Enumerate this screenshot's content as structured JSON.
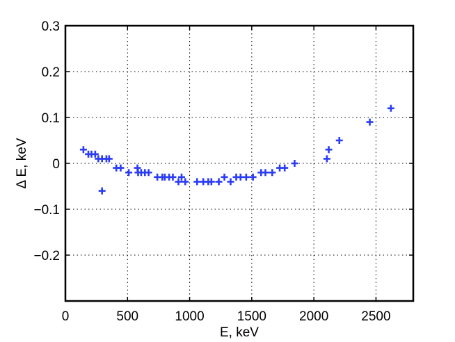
{
  "chart_data": {
    "type": "scatter",
    "xlabel": "E, keV",
    "ylabel": "Δ E, keV",
    "xlim": [
      0,
      2800
    ],
    "ylim": [
      -0.3,
      0.3
    ],
    "xticks": [
      0,
      500,
      1000,
      1500,
      2000,
      2500
    ],
    "yticks": [
      -0.2,
      -0.1,
      0,
      0.1,
      0.2,
      0.3
    ],
    "xtick_labels": [
      "0",
      "500",
      "1000",
      "1500",
      "2000",
      "2500"
    ],
    "ytick_labels": [
      "−0.2",
      "−0.1",
      "0",
      "0.1",
      "0.2",
      "0.3"
    ],
    "grid": true,
    "marker": "plus",
    "marker_color": "#2b3cf5",
    "series": [
      {
        "points": [
          [
            145,
            0.03
          ],
          [
            185,
            0.02
          ],
          [
            210,
            0.02
          ],
          [
            240,
            0.02
          ],
          [
            265,
            0.01
          ],
          [
            295,
            0.01
          ],
          [
            295,
            -0.06
          ],
          [
            330,
            0.01
          ],
          [
            352,
            0.01
          ],
          [
            410,
            -0.01
          ],
          [
            445,
            -0.01
          ],
          [
            510,
            -0.02
          ],
          [
            580,
            -0.01
          ],
          [
            585,
            -0.02
          ],
          [
            610,
            -0.02
          ],
          [
            640,
            -0.02
          ],
          [
            670,
            -0.02
          ],
          [
            740,
            -0.03
          ],
          [
            780,
            -0.03
          ],
          [
            800,
            -0.03
          ],
          [
            835,
            -0.03
          ],
          [
            865,
            -0.03
          ],
          [
            910,
            -0.04
          ],
          [
            935,
            -0.03
          ],
          [
            965,
            -0.04
          ],
          [
            1060,
            -0.04
          ],
          [
            1110,
            -0.04
          ],
          [
            1150,
            -0.04
          ],
          [
            1175,
            -0.04
          ],
          [
            1235,
            -0.04
          ],
          [
            1280,
            -0.03
          ],
          [
            1330,
            -0.04
          ],
          [
            1375,
            -0.03
          ],
          [
            1410,
            -0.03
          ],
          [
            1455,
            -0.03
          ],
          [
            1510,
            -0.03
          ],
          [
            1575,
            -0.02
          ],
          [
            1610,
            -0.02
          ],
          [
            1665,
            -0.02
          ],
          [
            1725,
            -0.01
          ],
          [
            1765,
            -0.01
          ],
          [
            1845,
            0.0
          ],
          [
            2105,
            0.01
          ],
          [
            2120,
            0.03
          ],
          [
            2205,
            0.05
          ],
          [
            2450,
            0.09
          ],
          [
            2620,
            0.12
          ]
        ]
      }
    ]
  }
}
